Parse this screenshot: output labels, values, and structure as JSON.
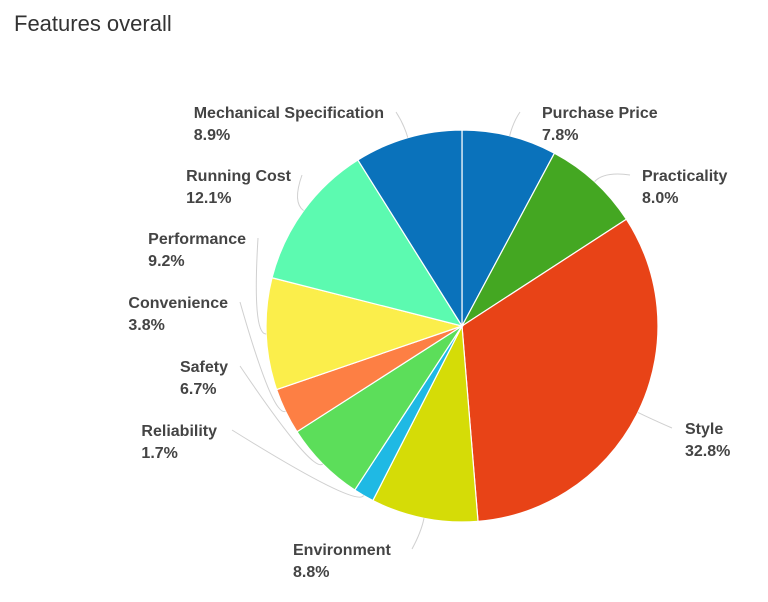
{
  "chart_data": {
    "type": "pie",
    "title": "Features overall",
    "slices": [
      {
        "label": "Purchase Price",
        "value": 7.8,
        "display": "7.8%",
        "color": "#0a72bb"
      },
      {
        "label": "Practicality",
        "value": 8.0,
        "display": "8.0%",
        "color": "#44a722"
      },
      {
        "label": "Style",
        "value": 32.8,
        "display": "32.8%",
        "color": "#e84317"
      },
      {
        "label": "Environment",
        "value": 8.8,
        "display": "8.8%",
        "color": "#d5dc07"
      },
      {
        "label": "Reliability",
        "value": 1.7,
        "display": "1.7%",
        "color": "#1fb9e4"
      },
      {
        "label": "Safety",
        "value": 6.7,
        "display": "6.7%",
        "color": "#5cde5a"
      },
      {
        "label": "Convenience",
        "value": 3.8,
        "display": "3.8%",
        "color": "#fd7f44"
      },
      {
        "label": "Performance",
        "value": 9.2,
        "display": "9.2%",
        "color": "#fbee4b"
      },
      {
        "label": "Running Cost",
        "value": 12.1,
        "display": "12.1%",
        "color": "#5cfab0"
      },
      {
        "label": "Mechanical Specification",
        "value": 8.9,
        "display": "8.9%",
        "color": "#0a72bb"
      }
    ]
  }
}
